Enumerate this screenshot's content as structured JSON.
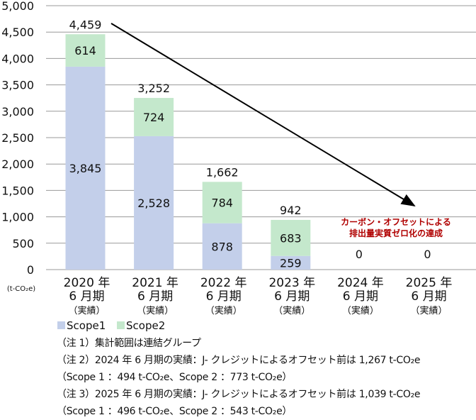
{
  "chart_data": {
    "type": "bar",
    "stacked": true,
    "unit_label": "(t-CO₂e)",
    "categories": [
      [
        "2020 年",
        "6 月期",
        "（実績）"
      ],
      [
        "2021 年",
        "6 月期",
        "（実績）"
      ],
      [
        "2022 年",
        "6 月期",
        "（実績）"
      ],
      [
        "2023 年",
        "6 月期",
        "（実績）"
      ],
      [
        "2024 年",
        "6 月期",
        "（実績）"
      ],
      [
        "2025 年",
        "6 月期",
        "（実績）"
      ]
    ],
    "series": [
      {
        "name": "Scope1",
        "color": "#c3cfea",
        "values": [
          3845,
          2528,
          878,
          259,
          0,
          0
        ],
        "labels": [
          "3,845",
          "2,528",
          "878",
          "259",
          "",
          ""
        ]
      },
      {
        "name": "Scope2",
        "color": "#c4e8cc",
        "values": [
          614,
          724,
          784,
          683,
          0,
          0
        ],
        "labels": [
          "614",
          "724",
          "784",
          "683",
          "",
          ""
        ]
      }
    ],
    "totals": [
      "4,459",
      "3,252",
      "1,662",
      "942",
      "0",
      "0"
    ],
    "ylim": [
      0,
      5000
    ],
    "yticks": [
      0,
      500,
      1000,
      1500,
      2000,
      2500,
      3000,
      3500,
      4000,
      4500,
      5000
    ],
    "ytick_labels": [
      "0",
      "500",
      "1,000",
      "1,500",
      "2,000",
      "2,500",
      "3,000",
      "3,500",
      "4,000",
      "4,500",
      "5,000"
    ],
    "grid": true,
    "legend_position": "bottom-left",
    "annotation": {
      "lines": [
        "カーボン・オフセットによる",
        "排出量実質ゼロ化の達成"
      ],
      "color": "#b00000"
    },
    "trend_arrow": {
      "from_category": 0,
      "to_category": 5
    }
  },
  "notes": [
    "（注 1）集計範囲は連結グループ",
    "（注 2）2024 年 6 月期の実績：J- クレジットによるオフセット前は 1,267 t-CO₂e",
    "（Scope 1 ：494 t-CO₂e、Scope 2 ：773 t-CO₂e）",
    "（注 3）2025 年 6 月期の実績：J- クレジットによるオフセット前は 1,039 t-CO₂e",
    "（Scope 1 ：496 t-CO₂e、Scope 2 ：543 t-CO₂e）"
  ]
}
